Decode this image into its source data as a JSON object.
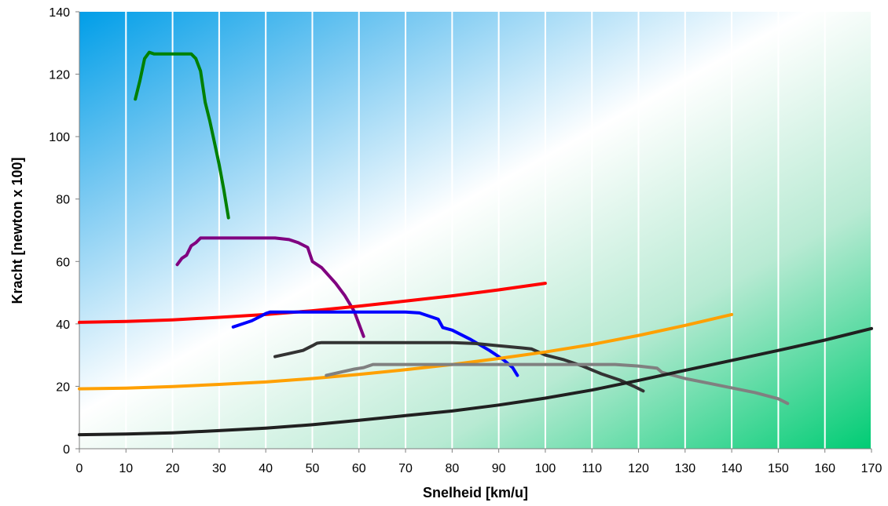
{
  "chart_data": {
    "type": "line",
    "title": "",
    "xlabel": "Snelheid [km/u]",
    "ylabel": "Kracht [newton x 100]",
    "xlim": [
      0,
      170
    ],
    "ylim": [
      0,
      140
    ],
    "xticks": [
      0,
      10,
      20,
      30,
      40,
      50,
      60,
      70,
      80,
      90,
      100,
      110,
      120,
      130,
      140,
      150,
      160,
      170
    ],
    "yticks": [
      0,
      20,
      40,
      60,
      80,
      100,
      120,
      140
    ],
    "grid": "vertical",
    "legend": "none",
    "background": "gradient: blue top-left, white center, green bottom-right",
    "series": [
      {
        "color": "#008000",
        "x": [
          12,
          13,
          14,
          15,
          16,
          18,
          20,
          22,
          24,
          25,
          26,
          27,
          28,
          29,
          30,
          31,
          32
        ],
        "y": [
          112,
          118,
          125,
          127,
          126.5,
          126.5,
          126.5,
          126.5,
          126.5,
          125,
          121,
          111,
          105,
          98,
          91,
          83,
          74
        ]
      },
      {
        "color": "#800080",
        "x": [
          21,
          22,
          23,
          24,
          25,
          26,
          27,
          30,
          35,
          40,
          42,
          45,
          47,
          49,
          50,
          52,
          55,
          57,
          59,
          61
        ],
        "y": [
          59,
          61,
          62,
          65,
          66,
          67.5,
          67.5,
          67.5,
          67.5,
          67.5,
          67.5,
          67,
          66,
          64.5,
          60,
          58,
          53,
          49,
          44,
          36
        ]
      },
      {
        "color": "#ff0000",
        "x": [
          0,
          10,
          20,
          30,
          40,
          50,
          60,
          70,
          80,
          90,
          100
        ],
        "y": [
          40.5,
          40.8,
          41.3,
          42.1,
          43.0,
          44.2,
          45.7,
          47.3,
          49.0,
          50.9,
          53.0
        ]
      },
      {
        "color": "#0000ff",
        "x": [
          33,
          35,
          37,
          39,
          40,
          41,
          45,
          50,
          55,
          60,
          65,
          70,
          73,
          75,
          77,
          78,
          80,
          84,
          88,
          91,
          93,
          94
        ],
        "y": [
          39,
          40,
          41,
          42.5,
          43.3,
          43.8,
          43.8,
          43.8,
          43.8,
          43.8,
          43.8,
          43.8,
          43.5,
          42.5,
          41.5,
          38.8,
          38,
          35,
          31.5,
          28.5,
          26,
          23.5
        ]
      },
      {
        "color": "#333333",
        "x": [
          42,
          45,
          48,
          50,
          51,
          52,
          55,
          60,
          65,
          70,
          75,
          80,
          85,
          90,
          95,
          97,
          100,
          104,
          108,
          112,
          116,
          119,
          121
        ],
        "y": [
          29.5,
          30.5,
          31.5,
          33,
          33.8,
          34,
          34,
          34,
          34,
          34,
          34,
          34,
          33.7,
          33,
          32.3,
          32,
          30,
          28.5,
          26.5,
          24,
          22,
          20,
          18.5
        ]
      },
      {
        "color": "#ffa000",
        "x": [
          0,
          10,
          20,
          30,
          40,
          50,
          60,
          70,
          80,
          90,
          100,
          110,
          120,
          130,
          140
        ],
        "y": [
          19.2,
          19.4,
          19.9,
          20.6,
          21.4,
          22.5,
          23.8,
          25.3,
          27.0,
          28.9,
          31.0,
          33.4,
          36.3,
          39.5,
          43.0
        ]
      },
      {
        "color": "#808080",
        "x": [
          53,
          56,
          59,
          61,
          62,
          63,
          65,
          70,
          80,
          90,
          100,
          110,
          115,
          120,
          123,
          124,
          125,
          130,
          135,
          140,
          145,
          150,
          152
        ],
        "y": [
          23.5,
          24.5,
          25.5,
          26,
          26.5,
          27,
          27,
          27,
          27,
          27,
          27,
          27,
          27,
          26.5,
          26,
          25.8,
          24.5,
          22.5,
          21,
          19.5,
          18,
          16,
          14.5
        ]
      },
      {
        "color": "#202020",
        "x": [
          0,
          10,
          20,
          30,
          40,
          50,
          60,
          70,
          80,
          90,
          100,
          110,
          120,
          130,
          140,
          150,
          160,
          170
        ],
        "y": [
          4.5,
          4.7,
          5.1,
          5.8,
          6.6,
          7.7,
          9.1,
          10.6,
          12.1,
          14.0,
          16.2,
          18.8,
          21.9,
          25.1,
          28.3,
          31.5,
          34.8,
          38.5
        ]
      }
    ]
  }
}
